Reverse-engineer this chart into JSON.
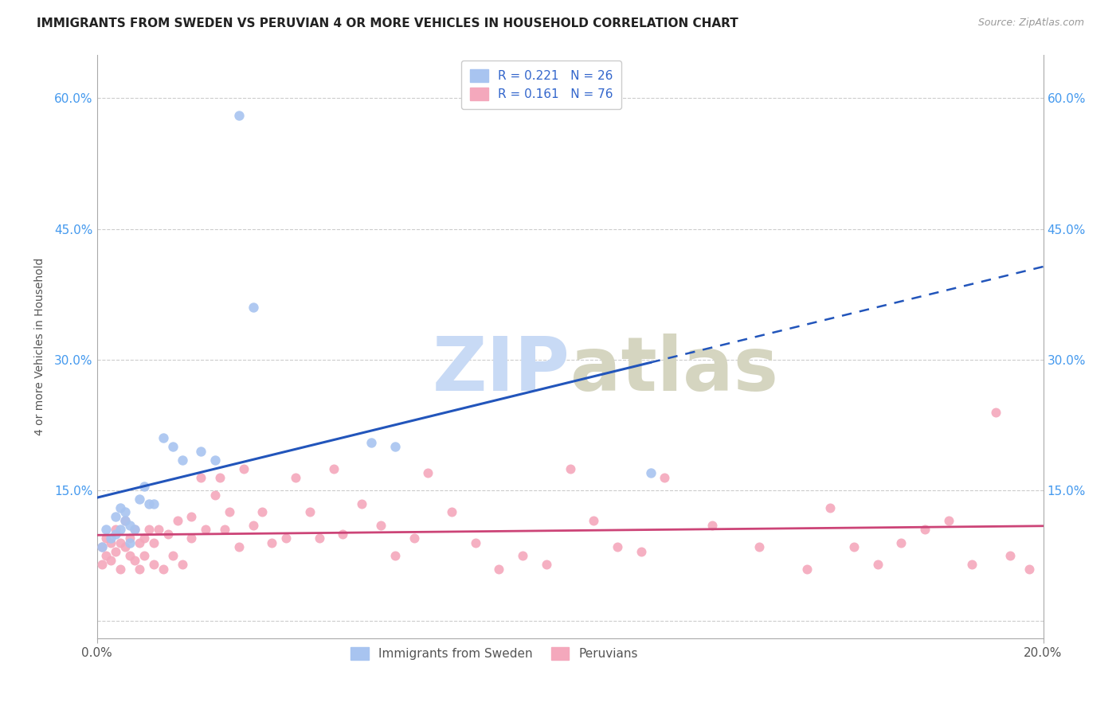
{
  "title": "IMMIGRANTS FROM SWEDEN VS PERUVIAN 4 OR MORE VEHICLES IN HOUSEHOLD CORRELATION CHART",
  "source": "Source: ZipAtlas.com",
  "ylabel": "4 or more Vehicles in Household",
  "xlim": [
    0.0,
    0.2
  ],
  "ylim": [
    -0.02,
    0.65
  ],
  "yticks": [
    0.0,
    0.15,
    0.3,
    0.45,
    0.6
  ],
  "ytick_labels": [
    "",
    "15.0%",
    "30.0%",
    "45.0%",
    "60.0%"
  ],
  "xtick_labels": [
    "0.0%",
    "20.0%"
  ],
  "xtick_positions": [
    0.0,
    0.2
  ],
  "sweden_color": "#a8c4f0",
  "peru_color": "#f4a8bc",
  "sweden_line_color": "#2255bb",
  "peru_line_color": "#cc4477",
  "sweden_R": 0.221,
  "sweden_N": 26,
  "peru_R": 0.161,
  "peru_N": 76,
  "sweden_x": [
    0.001,
    0.002,
    0.003,
    0.004,
    0.004,
    0.005,
    0.005,
    0.006,
    0.006,
    0.007,
    0.007,
    0.008,
    0.009,
    0.01,
    0.011,
    0.012,
    0.014,
    0.016,
    0.018,
    0.022,
    0.025,
    0.03,
    0.033,
    0.058,
    0.063,
    0.117
  ],
  "sweden_y": [
    0.085,
    0.105,
    0.095,
    0.12,
    0.1,
    0.13,
    0.105,
    0.115,
    0.125,
    0.09,
    0.11,
    0.105,
    0.14,
    0.155,
    0.135,
    0.135,
    0.21,
    0.2,
    0.185,
    0.195,
    0.185,
    0.58,
    0.36,
    0.205,
    0.2,
    0.17
  ],
  "peru_x": [
    0.001,
    0.001,
    0.002,
    0.002,
    0.003,
    0.003,
    0.004,
    0.004,
    0.005,
    0.005,
    0.006,
    0.006,
    0.007,
    0.007,
    0.008,
    0.008,
    0.009,
    0.009,
    0.01,
    0.01,
    0.011,
    0.012,
    0.012,
    0.013,
    0.014,
    0.015,
    0.016,
    0.017,
    0.018,
    0.02,
    0.02,
    0.022,
    0.023,
    0.025,
    0.026,
    0.027,
    0.028,
    0.03,
    0.031,
    0.033,
    0.035,
    0.037,
    0.04,
    0.042,
    0.045,
    0.047,
    0.05,
    0.052,
    0.056,
    0.06,
    0.063,
    0.067,
    0.07,
    0.075,
    0.08,
    0.085,
    0.09,
    0.095,
    0.1,
    0.105,
    0.11,
    0.115,
    0.12,
    0.13,
    0.14,
    0.15,
    0.155,
    0.16,
    0.165,
    0.17,
    0.175,
    0.18,
    0.185,
    0.19,
    0.193,
    0.197
  ],
  "peru_y": [
    0.065,
    0.085,
    0.075,
    0.095,
    0.07,
    0.09,
    0.08,
    0.105,
    0.06,
    0.09,
    0.085,
    0.115,
    0.075,
    0.095,
    0.07,
    0.105,
    0.06,
    0.09,
    0.075,
    0.095,
    0.105,
    0.065,
    0.09,
    0.105,
    0.06,
    0.1,
    0.075,
    0.115,
    0.065,
    0.095,
    0.12,
    0.165,
    0.105,
    0.145,
    0.165,
    0.105,
    0.125,
    0.085,
    0.175,
    0.11,
    0.125,
    0.09,
    0.095,
    0.165,
    0.125,
    0.095,
    0.175,
    0.1,
    0.135,
    0.11,
    0.075,
    0.095,
    0.17,
    0.125,
    0.09,
    0.06,
    0.075,
    0.065,
    0.175,
    0.115,
    0.085,
    0.08,
    0.165,
    0.11,
    0.085,
    0.06,
    0.13,
    0.085,
    0.065,
    0.09,
    0.105,
    0.115,
    0.065,
    0.24,
    0.075,
    0.06
  ]
}
